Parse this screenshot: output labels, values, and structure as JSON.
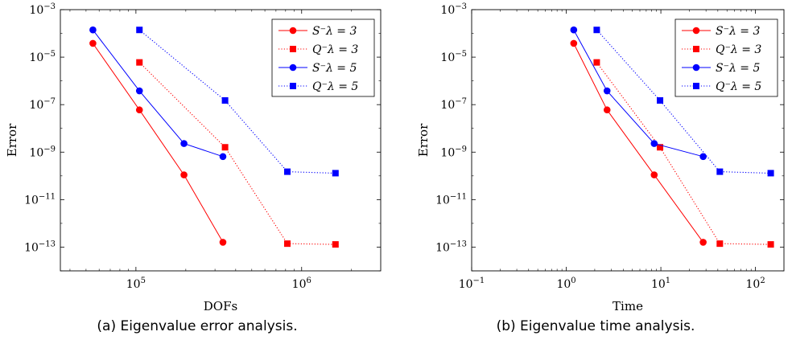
{
  "figure": {
    "captions": [
      "(a) Eigenvalue error analysis.",
      "(b) Eigenvalue time analysis."
    ]
  },
  "colors": {
    "red": "#ff0000",
    "blue": "#0000ff"
  },
  "chart_data": [
    {
      "type": "line",
      "xscale": "log",
      "yscale": "log",
      "xlabel": "DOFs",
      "ylabel": "Error",
      "xlim": [
        35000,
        3000000
      ],
      "ylim": [
        1e-14,
        0.001
      ],
      "xticks": [
        100000,
        1000000
      ],
      "xtick_labels": [
        {
          "base": "10",
          "exp": "5"
        },
        {
          "base": "10",
          "exp": "6"
        }
      ],
      "yticks": [
        1e-13,
        1e-11,
        1e-09,
        1e-07,
        1e-05,
        0.001
      ],
      "ytick_labels": [
        {
          "base": "10",
          "exp": "−13"
        },
        {
          "base": "10",
          "exp": "−11"
        },
        {
          "base": "10",
          "exp": "−9"
        },
        {
          "base": "10",
          "exp": "−7"
        },
        {
          "base": "10",
          "exp": "−5"
        },
        {
          "base": "10",
          "exp": "−3"
        }
      ],
      "grid": false,
      "legend_position": "top-right",
      "series": [
        {
          "name": "S⁻λ = 3",
          "color": "#ff0000",
          "marker": "circle",
          "style": "solid",
          "x": [
            55000,
            105000,
            195000,
            335000
          ],
          "y": [
            3.8e-05,
            6e-08,
            1.1e-10,
            1.6e-13
          ]
        },
        {
          "name": "Q⁻λ = 3",
          "color": "#ff0000",
          "marker": "square",
          "style": "dotted",
          "x": [
            105000,
            345000,
            820000,
            1600000
          ],
          "y": [
            6e-06,
            1.6e-09,
            1.4e-13,
            1.3e-13
          ]
        },
        {
          "name": "S⁻λ = 5",
          "color": "#0000ff",
          "marker": "circle",
          "style": "solid",
          "x": [
            55000,
            105000,
            195000,
            335000
          ],
          "y": [
            0.00014,
            3.8e-07,
            2.3e-09,
            6.5e-10
          ]
        },
        {
          "name": "Q⁻λ = 5",
          "color": "#0000ff",
          "marker": "square",
          "style": "dotted",
          "x": [
            105000,
            345000,
            820000,
            1600000
          ],
          "y": [
            0.00014,
            1.5e-07,
            1.5e-10,
            1.3e-10
          ]
        }
      ]
    },
    {
      "type": "line",
      "xscale": "log",
      "yscale": "log",
      "xlabel": "Time",
      "ylabel": "Error",
      "xlim": [
        0.1,
        200
      ],
      "ylim": [
        1e-14,
        0.001
      ],
      "xticks": [
        0.1,
        1,
        10,
        100
      ],
      "xtick_labels": [
        {
          "base": "10",
          "exp": "−1"
        },
        {
          "base": "10",
          "exp": "0"
        },
        {
          "base": "10",
          "exp": "1"
        },
        {
          "base": "10",
          "exp": "2"
        }
      ],
      "yticks": [
        1e-13,
        1e-11,
        1e-09,
        1e-07,
        1e-05,
        0.001
      ],
      "ytick_labels": [
        {
          "base": "10",
          "exp": "−13"
        },
        {
          "base": "10",
          "exp": "−11"
        },
        {
          "base": "10",
          "exp": "−9"
        },
        {
          "base": "10",
          "exp": "−7"
        },
        {
          "base": "10",
          "exp": "−5"
        },
        {
          "base": "10",
          "exp": "−3"
        }
      ],
      "grid": false,
      "legend_position": "top-right",
      "series": [
        {
          "name": "S⁻λ = 3",
          "color": "#ff0000",
          "marker": "circle",
          "style": "solid",
          "x": [
            1.2,
            2.7,
            8.5,
            28
          ],
          "y": [
            3.8e-05,
            6e-08,
            1.1e-10,
            1.6e-13
          ]
        },
        {
          "name": "Q⁻λ = 3",
          "color": "#ff0000",
          "marker": "square",
          "style": "dotted",
          "x": [
            2.1,
            9.8,
            42,
            145
          ],
          "y": [
            6e-06,
            1.6e-09,
            1.4e-13,
            1.3e-13
          ]
        },
        {
          "name": "S⁻λ = 5",
          "color": "#0000ff",
          "marker": "circle",
          "style": "solid",
          "x": [
            1.2,
            2.7,
            8.5,
            28
          ],
          "y": [
            0.00014,
            3.8e-07,
            2.3e-09,
            6.5e-10
          ]
        },
        {
          "name": "Q⁻λ = 5",
          "color": "#0000ff",
          "marker": "square",
          "style": "dotted",
          "x": [
            2.1,
            9.8,
            42,
            145
          ],
          "y": [
            0.00014,
            1.5e-07,
            1.5e-10,
            1.3e-10
          ]
        }
      ]
    }
  ]
}
